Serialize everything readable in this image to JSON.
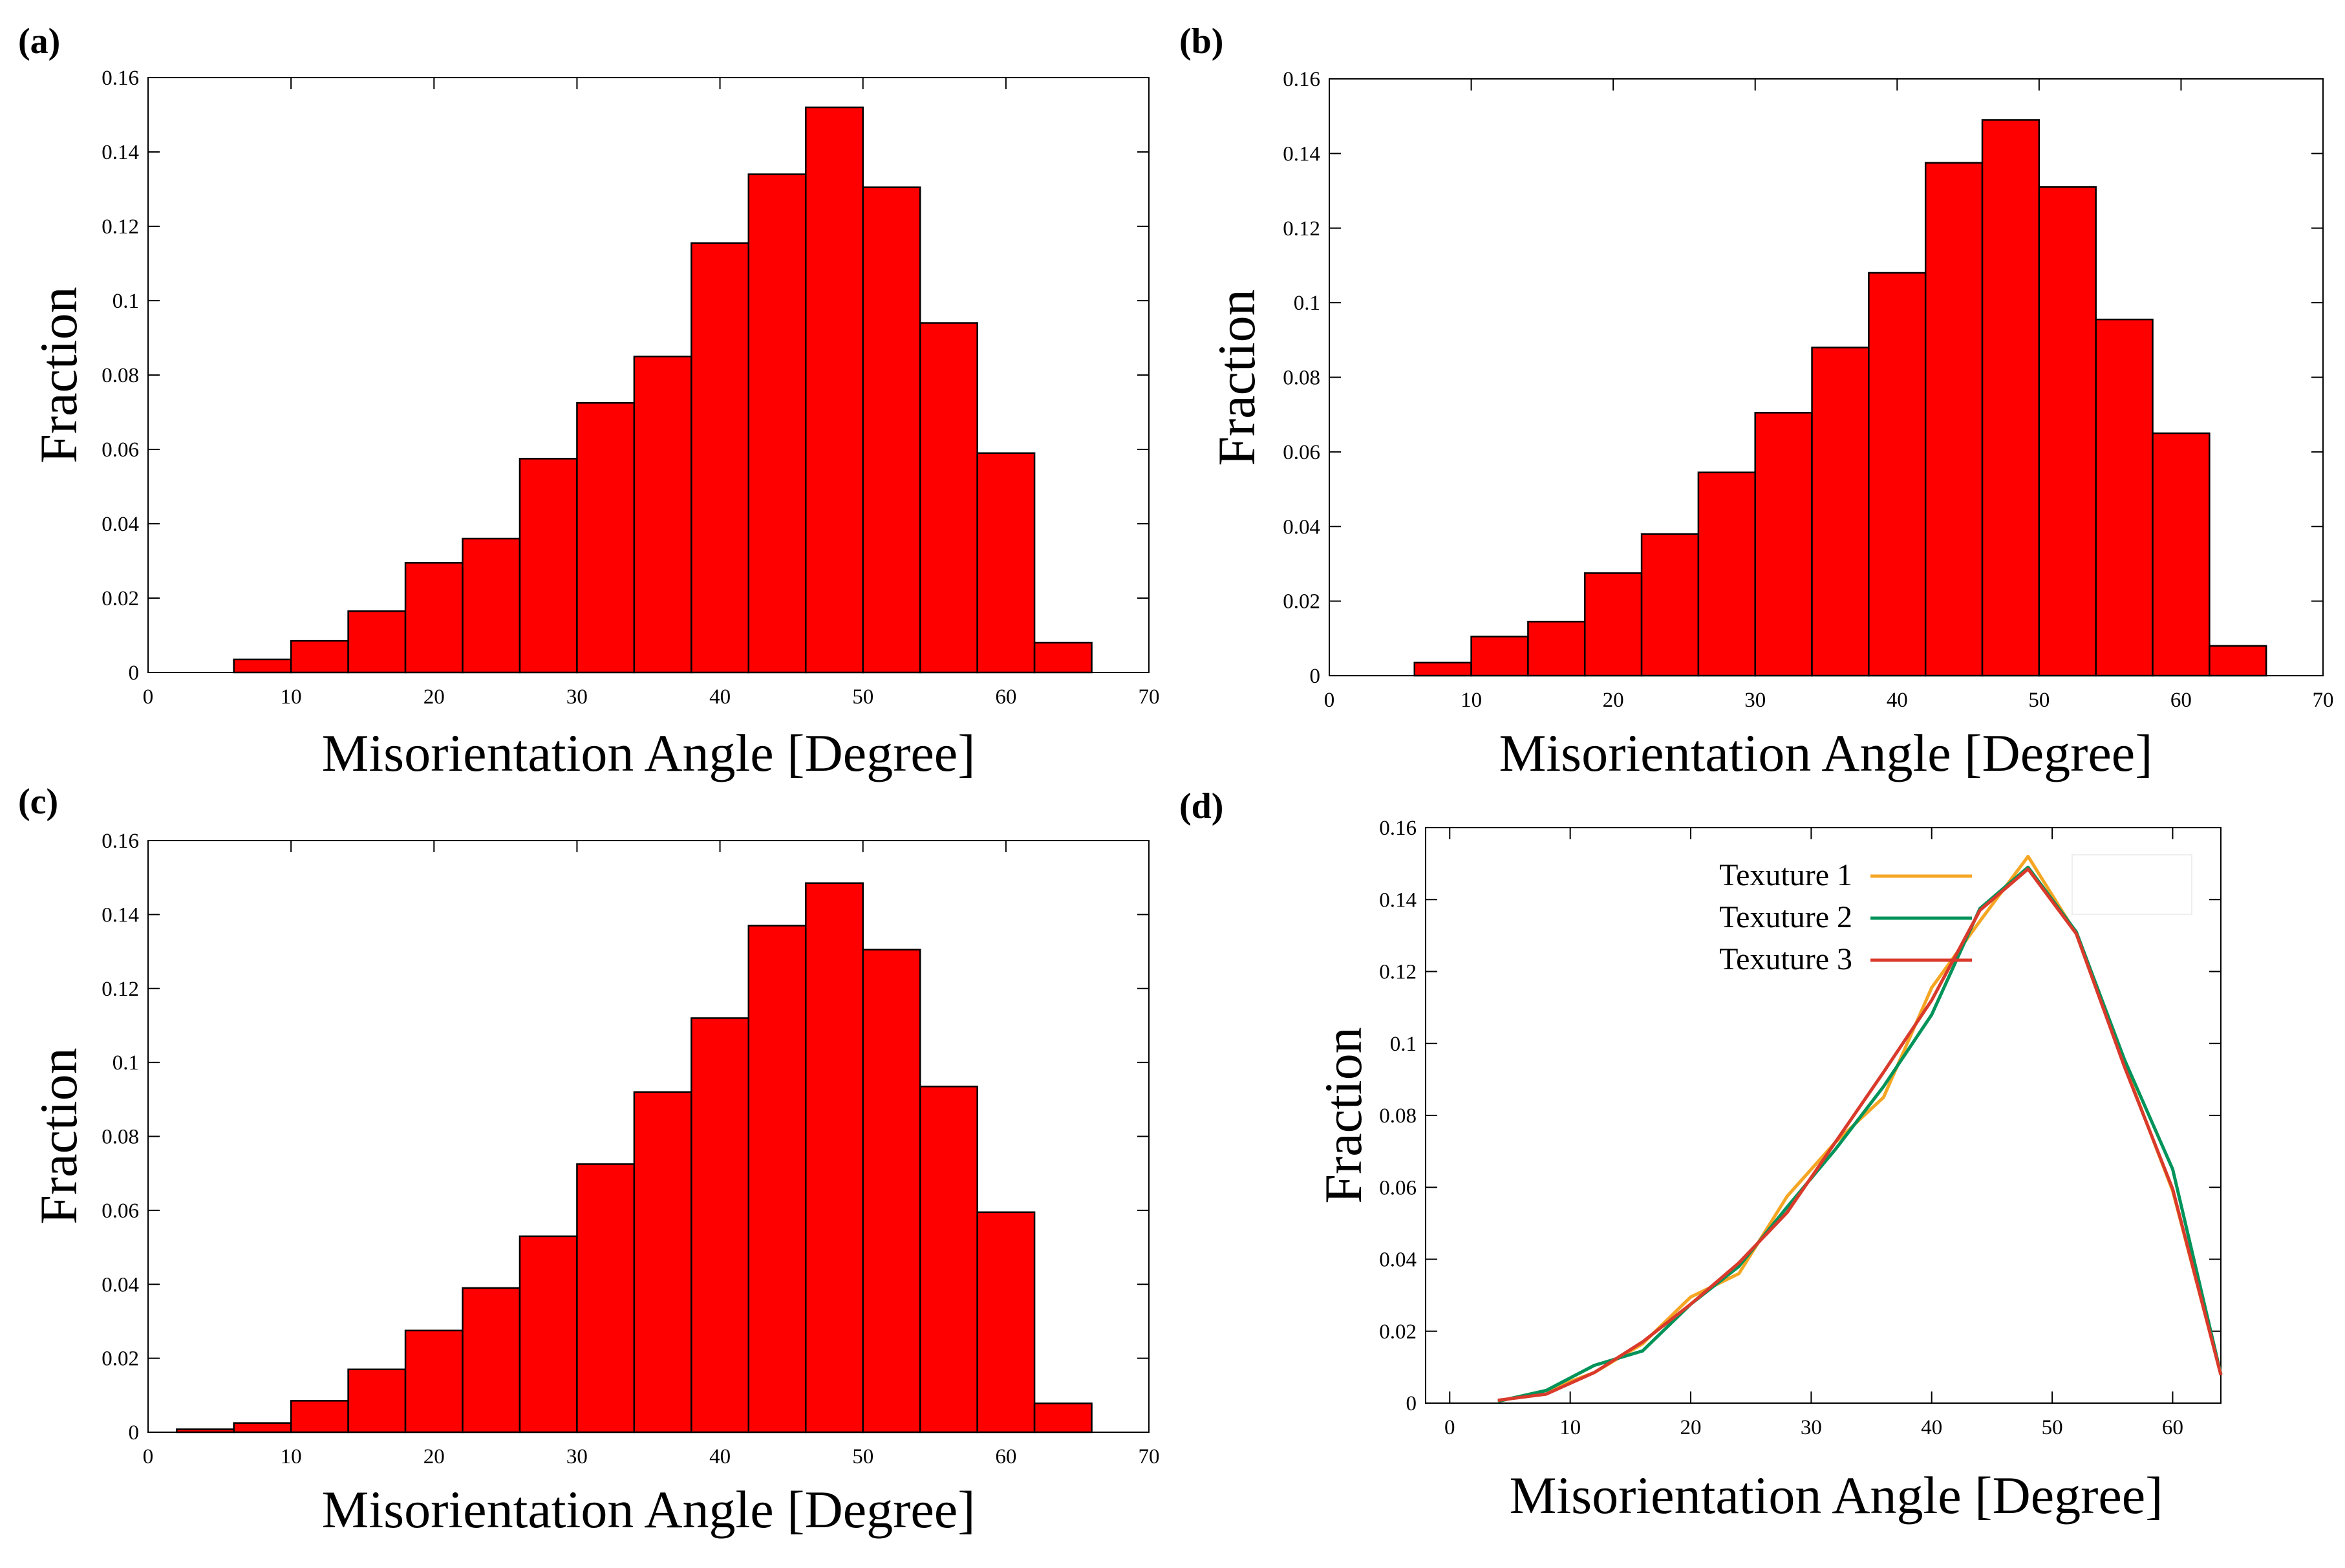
{
  "figure": {
    "panels": [
      {
        "label": "(a)"
      },
      {
        "label": "(b)"
      },
      {
        "label": "(c)"
      },
      {
        "label": "(d)"
      }
    ]
  },
  "chart_data": [
    {
      "type": "bar",
      "panel": "(a)",
      "xlabel": "Misorientation Angle [Degree]",
      "ylabel": "Fraction",
      "xlim": [
        0,
        70
      ],
      "ylim": [
        0,
        0.16
      ],
      "xticks": [
        "0",
        "10",
        "20",
        "30",
        "40",
        "50",
        "60",
        "70"
      ],
      "yticks": [
        "0",
        "0.02",
        "0.04",
        "0.06",
        "0.08",
        "0.1",
        "0.12",
        "0.14",
        "0.16"
      ],
      "bin_width": 4,
      "bin_centers": [
        4,
        8,
        12,
        16,
        20,
        24,
        28,
        32,
        36,
        40,
        44,
        48,
        52,
        56,
        60,
        64
      ],
      "values": [
        0.0,
        0.0035,
        0.0085,
        0.0165,
        0.0295,
        0.036,
        0.0575,
        0.0725,
        0.085,
        0.1155,
        0.134,
        0.152,
        0.1305,
        0.094,
        0.059,
        0.008
      ],
      "color": "#ff0000"
    },
    {
      "type": "bar",
      "panel": "(b)",
      "xlabel": "Misorientation Angle [Degree]",
      "ylabel": "Fraction",
      "xlim": [
        0,
        70
      ],
      "ylim": [
        0,
        0.16
      ],
      "xticks": [
        "0",
        "10",
        "20",
        "30",
        "40",
        "50",
        "60",
        "70"
      ],
      "yticks": [
        "0",
        "0.02",
        "0.04",
        "0.06",
        "0.08",
        "0.1",
        "0.12",
        "0.14",
        "0.16"
      ],
      "bin_width": 4,
      "bin_centers": [
        4,
        8,
        12,
        16,
        20,
        24,
        28,
        32,
        36,
        40,
        44,
        48,
        52,
        56,
        60,
        64
      ],
      "values": [
        0.0,
        0.0035,
        0.0105,
        0.0145,
        0.0275,
        0.038,
        0.0545,
        0.0705,
        0.088,
        0.108,
        0.1375,
        0.149,
        0.131,
        0.0955,
        0.065,
        0.008
      ],
      "color": "#ff0000"
    },
    {
      "type": "bar",
      "panel": "(c)",
      "xlabel": "Misorientation Angle [Degree]",
      "ylabel": "Fraction",
      "xlim": [
        0,
        70
      ],
      "ylim": [
        0,
        0.16
      ],
      "xticks": [
        "0",
        "10",
        "20",
        "30",
        "40",
        "50",
        "60",
        "70"
      ],
      "yticks": [
        "0",
        "0.02",
        "0.04",
        "0.06",
        "0.08",
        "0.1",
        "0.12",
        "0.14",
        "0.16"
      ],
      "bin_width": 4,
      "bin_centers": [
        4,
        8,
        12,
        16,
        20,
        24,
        28,
        32,
        36,
        40,
        44,
        48,
        52,
        56,
        60,
        64
      ],
      "values": [
        0.0008,
        0.0025,
        0.0085,
        0.017,
        0.0275,
        0.039,
        0.053,
        0.0725,
        0.092,
        0.112,
        0.137,
        0.1485,
        0.1305,
        0.0935,
        0.0595,
        0.0078
      ],
      "color": "#ff0000"
    },
    {
      "type": "line",
      "panel": "(d)",
      "xlabel": "Misorientation Angle [Degree]",
      "ylabel": "Fraction",
      "xlim": [
        -2,
        64
      ],
      "ylim": [
        0,
        0.16
      ],
      "xticks": [
        "0",
        "10",
        "20",
        "30",
        "40",
        "50",
        "60"
      ],
      "yticks": [
        "0",
        "0.02",
        "0.04",
        "0.06",
        "0.08",
        "0.1",
        "0.12",
        "0.14",
        "0.16"
      ],
      "x": [
        4,
        8,
        12,
        16,
        20,
        24,
        28,
        32,
        36,
        40,
        44,
        48,
        52,
        56,
        60,
        64
      ],
      "series": [
        {
          "name": "Texuture 1",
          "color": "#f5a623",
          "values": [
            0.0005,
            0.0035,
            0.0085,
            0.0165,
            0.0295,
            0.036,
            0.0575,
            0.0725,
            0.085,
            0.1155,
            0.134,
            0.152,
            0.1305,
            0.094,
            0.059,
            0.008
          ]
        },
        {
          "name": "Texuture 2",
          "color": "#00935a",
          "values": [
            0.0005,
            0.0035,
            0.0105,
            0.0145,
            0.0275,
            0.038,
            0.0545,
            0.0705,
            0.088,
            0.108,
            0.1375,
            0.149,
            0.131,
            0.0955,
            0.065,
            0.008
          ]
        },
        {
          "name": "Texuture 3",
          "color": "#d93a2b",
          "values": [
            0.0008,
            0.0025,
            0.0085,
            0.017,
            0.0275,
            0.039,
            0.053,
            0.0725,
            0.092,
            0.112,
            0.137,
            0.1485,
            0.1305,
            0.0935,
            0.0595,
            0.0078
          ]
        }
      ],
      "legend_position": "top-left"
    }
  ]
}
